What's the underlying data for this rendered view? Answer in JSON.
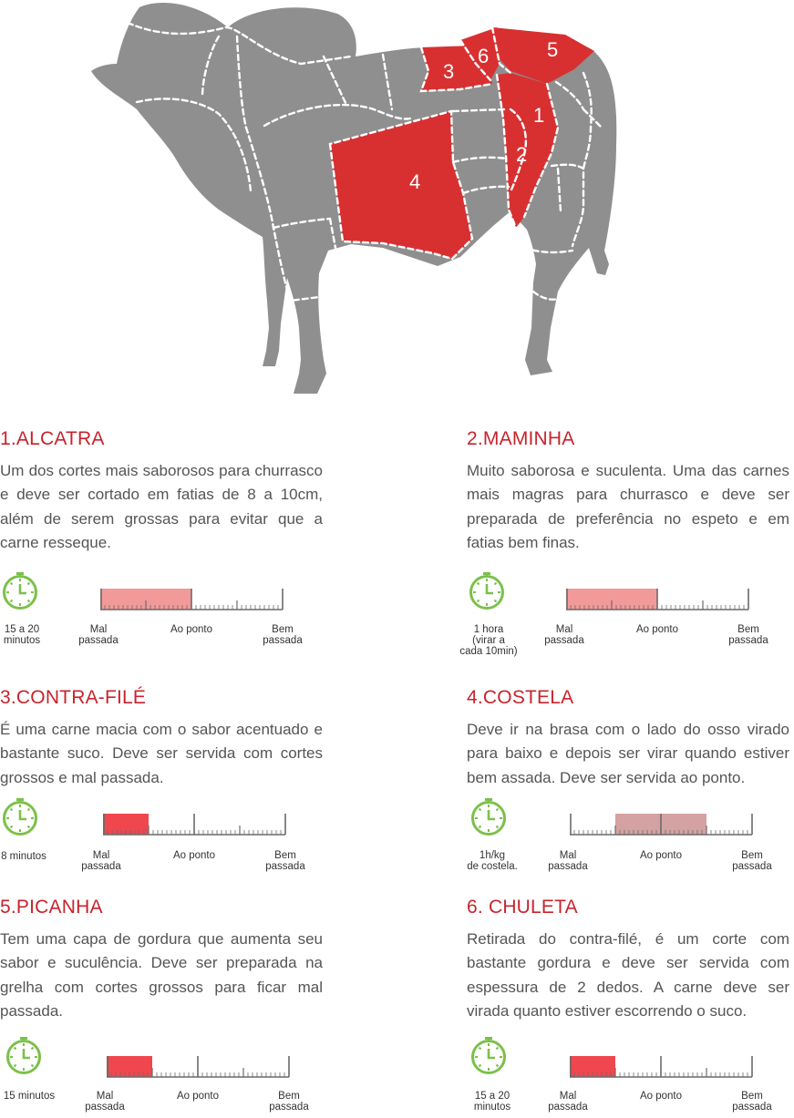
{
  "diagram": {
    "colors": {
      "body": "#8f8f8f",
      "highlight": "#d83030",
      "dash": "#ffffff"
    },
    "labels": [
      {
        "id": "1",
        "text": "1"
      },
      {
        "id": "2",
        "text": "2"
      },
      {
        "id": "3",
        "text": "3"
      },
      {
        "id": "4",
        "text": "4"
      },
      {
        "id": "5",
        "text": "5"
      },
      {
        "id": "6",
        "text": "6"
      }
    ]
  },
  "scale_labels": {
    "rare": "Mal passada",
    "medium": "Ao ponto",
    "well": "Bem passada"
  },
  "cuts": [
    {
      "title": "1.ALCATRA",
      "description": "Um dos cortes mais saborosos para churrasco e deve ser cortado em fatias de 8 a 10cm, além de serem grossas para evitar que a carne resseque.",
      "time_lines": [
        "15 a 20",
        "minutos"
      ],
      "doneness_from": 0.0,
      "doneness_to": 0.5,
      "fill_color": "#f29a9a"
    },
    {
      "title": "2.MAMINHA",
      "description": "Muito saborosa e suculenta. Uma das carnes mais magras para churrasco e deve ser preparada de preferência no espeto e em fatias bem finas.",
      "time_lines": [
        "1 hora",
        "(virar a",
        "cada 10min)"
      ],
      "doneness_from": 0.0,
      "doneness_to": 0.5,
      "fill_color": "#f29a9a"
    },
    {
      "title": "3.CONTRA-FILÉ",
      "description": "É uma carne macia com o sabor acentuado e bastante suco. Deve ser servida com cortes grossos e mal passada.",
      "time_lines": [
        "8 minutos"
      ],
      "doneness_from": 0.0,
      "doneness_to": 0.25,
      "fill_color": "#f0474f"
    },
    {
      "title": "4.COSTELA",
      "description": "Deve ir na brasa com o lado do osso virado para baixo e depois ser virar quando estiver bem assada. Deve ser servida ao ponto.",
      "time_lines": [
        "1h/kg",
        "de costela."
      ],
      "doneness_from": 0.25,
      "doneness_to": 0.75,
      "fill_color": "#d4a2a2"
    },
    {
      "title": "5.PICANHA",
      "description": "Tem uma capa de gordura que aumenta seu sabor e suculência. Deve ser preparada na grelha com cortes grossos para ficar mal passada.",
      "time_lines": [
        "15 minutos"
      ],
      "doneness_from": 0.0,
      "doneness_to": 0.25,
      "fill_color": "#f0474f"
    },
    {
      "title": "6. CHULETA",
      "description": "Retirada do contra-filé, é um corte com bastante gordura e deve ser servida com espessura de 2 dedos. A carne deve ser virada quanto estiver escorrendo o suco.",
      "time_lines": [
        "15 a 20",
        "minutos"
      ],
      "doneness_from": 0.0,
      "doneness_to": 0.25,
      "fill_color": "#f0474f"
    }
  ]
}
